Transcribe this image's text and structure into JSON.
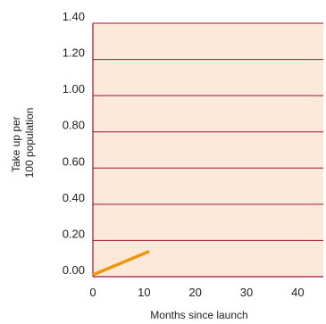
{
  "chart_data": {
    "type": "line",
    "title": "",
    "xlabel": "Months since launch",
    "ylabel_lines": [
      "Take up per",
      "100 population"
    ],
    "xlim": [
      0,
      45
    ],
    "ylim": [
      0,
      1.4
    ],
    "x_ticks": [
      0,
      10,
      20,
      30,
      40
    ],
    "x_tick_labels": [
      "0",
      "10",
      "20",
      "30",
      "40"
    ],
    "y_ticks": [
      0,
      0.2,
      0.4,
      0.6,
      0.8,
      1.0,
      1.2,
      1.4
    ],
    "y_tick_labels": [
      "0.00",
      "0.20",
      "0.40",
      "0.60",
      "0.80",
      "1.00",
      "1.20",
      "1.40"
    ],
    "grid": "horizontal",
    "legend": "none",
    "series": [
      {
        "x": [
          0,
          11
        ],
        "y": [
          0.01,
          0.14
        ]
      }
    ],
    "colors": {
      "plot_background": "#fde9da",
      "gridline": "#a0103a",
      "axis_line": "#a0103a",
      "series_line": "#f0960a",
      "text": "#222222"
    }
  }
}
